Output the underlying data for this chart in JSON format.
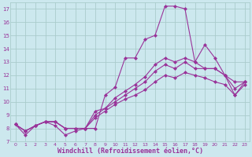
{
  "bg_color": "#cce8ee",
  "grid_color": "#aacccc",
  "line_color": "#993399",
  "xlabel": "Windchill (Refroidissement éolien,°C)",
  "xlabel_fontsize": 6.0,
  "ylim": [
    7,
    17.5
  ],
  "xlim": [
    -0.5,
    23.5
  ],
  "series": [
    [
      8.3,
      7.5,
      8.2,
      8.5,
      8.2,
      7.5,
      7.8,
      8.0,
      8.0,
      10.5,
      11.1,
      13.3,
      13.3,
      14.7,
      15.0,
      17.2,
      17.2,
      17.0,
      13.0,
      14.3,
      13.3,
      12.0,
      10.5,
      11.5
    ],
    [
      8.3,
      7.8,
      8.2,
      8.5,
      8.5,
      8.0,
      8.0,
      8.0,
      9.3,
      9.5,
      10.3,
      10.8,
      11.3,
      11.9,
      12.8,
      13.3,
      13.0,
      13.3,
      13.0,
      12.5,
      12.5,
      12.0,
      11.5,
      11.5
    ],
    [
      8.3,
      7.8,
      8.2,
      8.5,
      8.5,
      8.0,
      8.0,
      8.0,
      9.0,
      9.5,
      10.0,
      10.5,
      11.0,
      11.5,
      12.3,
      12.8,
      12.5,
      13.0,
      12.5,
      12.5,
      12.5,
      12.0,
      11.0,
      11.5
    ],
    [
      8.3,
      7.8,
      8.2,
      8.5,
      8.5,
      8.0,
      8.0,
      8.0,
      8.8,
      9.3,
      9.8,
      10.2,
      10.5,
      10.9,
      11.5,
      12.0,
      11.8,
      12.2,
      12.0,
      11.8,
      11.5,
      11.3,
      10.5,
      11.3
    ]
  ],
  "marker": "D",
  "markersize": 2.0,
  "linewidth": 0.8
}
